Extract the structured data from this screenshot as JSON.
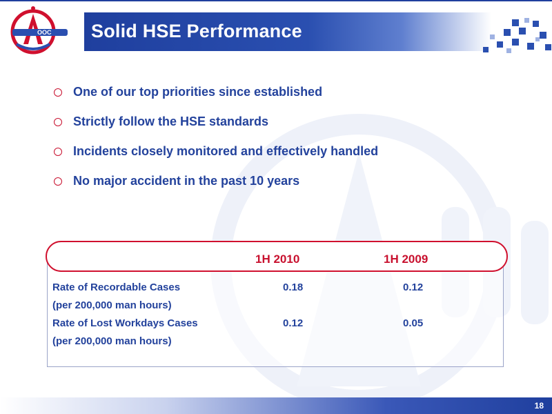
{
  "slide": {
    "title": "Solid HSE Performance",
    "page_number": "18"
  },
  "bullets": [
    {
      "text": "One of our top priorities since established"
    },
    {
      "text": "Strictly follow the HSE standards"
    },
    {
      "text": "Incidents closely monitored and effectively handled"
    },
    {
      "text": "No major accident in the past 10 years"
    }
  ],
  "table": {
    "columns": [
      "1H 2010",
      "1H 2009"
    ],
    "rows": [
      {
        "label": "Rate of Recordable Cases",
        "sublabel": "(per 200,000 man hours)",
        "values": [
          "0.18",
          "0.12"
        ]
      },
      {
        "label": "Rate of Lost Workdays Cases",
        "sublabel": "(per 200,000 man hours)",
        "values": [
          "0.12",
          "0.05"
        ]
      }
    ]
  },
  "colors": {
    "brand_blue": "#1f3f9e",
    "text_blue": "#23429c",
    "accent_red": "#c8102e"
  },
  "icons": {
    "logo": "cnooc-logo",
    "bullet": "circle-bullet-icon"
  }
}
